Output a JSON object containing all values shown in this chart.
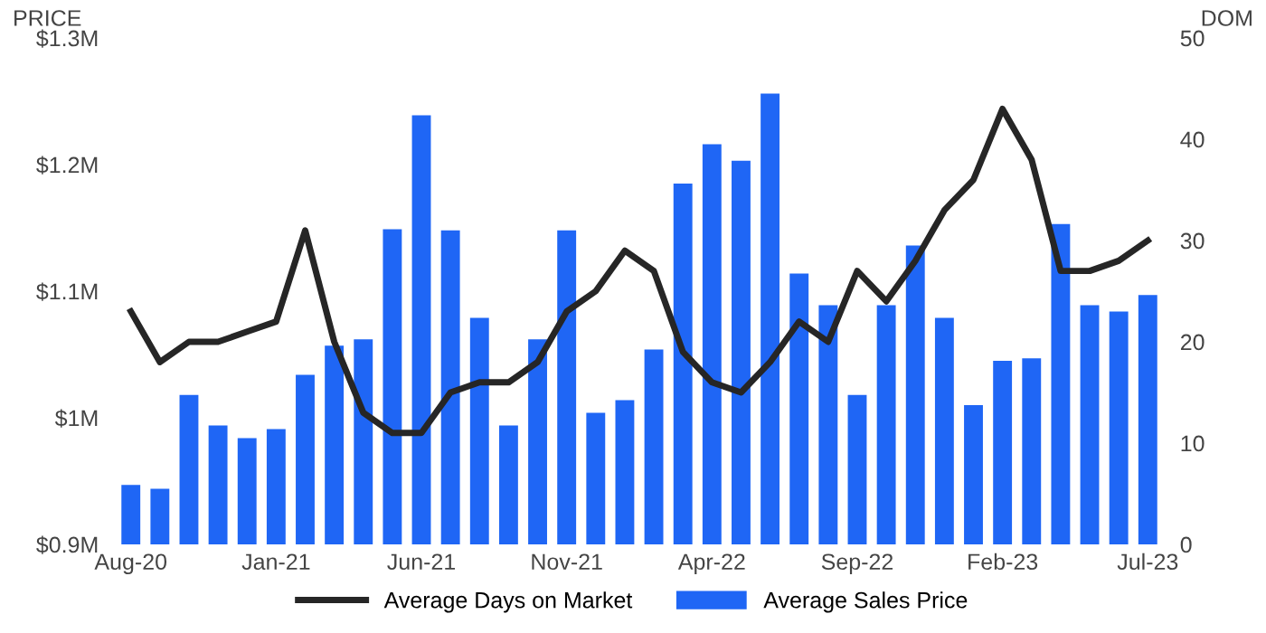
{
  "chart_data": {
    "type": "bar",
    "ylabel": "PRICE",
    "y2label": "DOM",
    "categories": [
      "Aug-20",
      null,
      null,
      null,
      null,
      "Jan-21",
      null,
      null,
      null,
      null,
      "Jun-21",
      null,
      null,
      null,
      null,
      "Nov-21",
      null,
      null,
      null,
      null,
      "Apr-22",
      null,
      null,
      null,
      null,
      "Sep-22",
      null,
      null,
      null,
      null,
      "Feb-23",
      null,
      null,
      null,
      null,
      "Jul-23"
    ],
    "series": [
      {
        "name": "Average Sales Price",
        "color": "#1f66f5",
        "values": [
          0.947,
          0.944,
          1.018,
          0.994,
          0.984,
          0.991,
          1.034,
          1.057,
          1.062,
          1.149,
          1.239,
          1.148,
          1.079,
          0.994,
          1.062,
          1.148,
          1.004,
          1.014,
          1.054,
          1.185,
          1.216,
          1.203,
          1.256,
          1.114,
          1.089,
          1.018,
          1.089,
          1.136,
          1.079,
          1.01,
          1.045,
          1.047,
          1.153,
          1.089,
          1.084,
          1.097
        ]
      },
      {
        "name": "Average Days on Market",
        "type": "line",
        "axis": "y2",
        "color": "#262626",
        "values": [
          23,
          18,
          20,
          20,
          21,
          22,
          31,
          20,
          13,
          11,
          11,
          15,
          16,
          16,
          18,
          23,
          25,
          29,
          27,
          19,
          16,
          15,
          18,
          22,
          20,
          27,
          24,
          28,
          33,
          36,
          43,
          38,
          27,
          27,
          28,
          30
        ]
      }
    ],
    "ylim": [
      0.9,
      1.3
    ],
    "yticks": [
      {
        "value": 0.9,
        "label": "$0.9M"
      },
      {
        "value": 1.0,
        "label": "$1M"
      },
      {
        "value": 1.1,
        "label": "$1.1M"
      },
      {
        "value": 1.2,
        "label": "$1.2M"
      },
      {
        "value": 1.3,
        "label": "$1.3M"
      }
    ],
    "y2lim": [
      0,
      50
    ],
    "y2ticks": [
      0,
      10,
      20,
      30,
      40,
      50
    ],
    "legend": "bottom",
    "grid": false,
    "marker": "none",
    "line_style": "solid"
  }
}
